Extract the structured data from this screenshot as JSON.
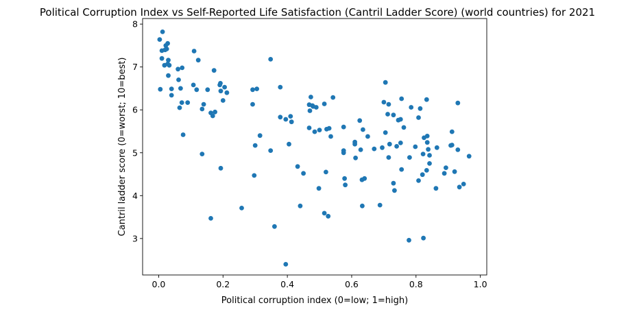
{
  "chart_data": {
    "type": "scatter",
    "title": "Political Corruption Index vs Self-Reported Life Satisfaction (Cantril Ladder Score) (world countries) for 2021",
    "xlabel": "Political corruption index (0=low; 1=high)",
    "ylabel": "Cantril ladder score (0=worst; 10=best)",
    "xlim": [
      -0.05,
      1.02
    ],
    "ylim": [
      2.15,
      8.13
    ],
    "xticks": [
      0.0,
      0.2,
      0.4,
      0.6,
      0.8,
      1.0
    ],
    "xtick_labels": [
      "0.0",
      "0.2",
      "0.4",
      "0.6",
      "0.8",
      "1.0"
    ],
    "yticks": [
      3,
      4,
      5,
      6,
      7,
      8
    ],
    "ytick_labels": [
      "3",
      "4",
      "5",
      "6",
      "7",
      "8"
    ],
    "grid": false,
    "marker_color": "#1f77b4",
    "points": [
      [
        0.003,
        7.64
      ],
      [
        0.012,
        7.82
      ],
      [
        0.022,
        7.5
      ],
      [
        0.028,
        7.55
      ],
      [
        0.01,
        7.38
      ],
      [
        0.02,
        7.4
      ],
      [
        0.025,
        7.42
      ],
      [
        0.01,
        7.2
      ],
      [
        0.018,
        7.04
      ],
      [
        0.03,
        7.16
      ],
      [
        0.033,
        7.04
      ],
      [
        0.028,
        7.07
      ],
      [
        0.03,
        6.8
      ],
      [
        0.06,
        6.95
      ],
      [
        0.073,
        6.98
      ],
      [
        0.062,
        6.7
      ],
      [
        0.005,
        6.48
      ],
      [
        0.04,
        6.49
      ],
      [
        0.068,
        6.5
      ],
      [
        0.04,
        6.34
      ],
      [
        0.072,
        6.17
      ],
      [
        0.065,
        6.05
      ],
      [
        0.09,
        6.17
      ],
      [
        0.076,
        5.42
      ],
      [
        0.11,
        7.37
      ],
      [
        0.123,
        7.16
      ],
      [
        0.108,
        6.58
      ],
      [
        0.118,
        6.47
      ],
      [
        0.152,
        6.47
      ],
      [
        0.172,
        6.92
      ],
      [
        0.14,
        6.13
      ],
      [
        0.135,
        6.02
      ],
      [
        0.162,
        5.93
      ],
      [
        0.168,
        5.86
      ],
      [
        0.175,
        5.95
      ],
      [
        0.135,
        4.97
      ],
      [
        0.193,
        4.64
      ],
      [
        0.162,
        3.47
      ],
      [
        0.192,
        6.62
      ],
      [
        0.193,
        6.44
      ],
      [
        0.205,
        6.53
      ],
      [
        0.212,
        6.4
      ],
      [
        0.2,
        6.22
      ],
      [
        0.19,
        6.58
      ],
      [
        0.258,
        3.71
      ],
      [
        0.292,
        6.47
      ],
      [
        0.292,
        6.13
      ],
      [
        0.305,
        6.49
      ],
      [
        0.3,
        5.17
      ],
      [
        0.315,
        5.4
      ],
      [
        0.297,
        4.47
      ],
      [
        0.348,
        7.18
      ],
      [
        0.348,
        5.05
      ],
      [
        0.36,
        3.28
      ],
      [
        0.378,
        6.53
      ],
      [
        0.378,
        5.83
      ],
      [
        0.395,
        5.78
      ],
      [
        0.41,
        5.85
      ],
      [
        0.413,
        5.72
      ],
      [
        0.405,
        5.2
      ],
      [
        0.432,
        4.68
      ],
      [
        0.44,
        3.76
      ],
      [
        0.45,
        4.52
      ],
      [
        0.395,
        2.4
      ],
      [
        0.468,
        6.12
      ],
      [
        0.473,
        6.3
      ],
      [
        0.48,
        6.08
      ],
      [
        0.47,
        5.98
      ],
      [
        0.478,
        6.1
      ],
      [
        0.49,
        6.06
      ],
      [
        0.515,
        6.14
      ],
      [
        0.468,
        5.58
      ],
      [
        0.485,
        5.49
      ],
      [
        0.5,
        5.53
      ],
      [
        0.522,
        5.55
      ],
      [
        0.53,
        5.57
      ],
      [
        0.535,
        5.38
      ],
      [
        0.542,
        6.29
      ],
      [
        0.498,
        4.17
      ],
      [
        0.52,
        4.55
      ],
      [
        0.515,
        3.59
      ],
      [
        0.527,
        3.52
      ],
      [
        0.575,
        5.6
      ],
      [
        0.575,
        5.05
      ],
      [
        0.575,
        5.0
      ],
      [
        0.578,
        4.4
      ],
      [
        0.58,
        4.25
      ],
      [
        0.61,
        5.25
      ],
      [
        0.61,
        5.2
      ],
      [
        0.612,
        4.88
      ],
      [
        0.625,
        5.75
      ],
      [
        0.635,
        5.54
      ],
      [
        0.628,
        5.07
      ],
      [
        0.632,
        4.37
      ],
      [
        0.64,
        4.4
      ],
      [
        0.65,
        5.38
      ],
      [
        0.633,
        3.76
      ],
      [
        0.67,
        5.09
      ],
      [
        0.688,
        3.78
      ],
      [
        0.695,
        5.12
      ],
      [
        0.705,
        6.64
      ],
      [
        0.7,
        6.18
      ],
      [
        0.715,
        6.13
      ],
      [
        0.712,
        5.9
      ],
      [
        0.705,
        5.47
      ],
      [
        0.718,
        5.2
      ],
      [
        0.73,
        5.88
      ],
      [
        0.745,
        5.76
      ],
      [
        0.752,
        5.78
      ],
      [
        0.74,
        5.15
      ],
      [
        0.752,
        5.23
      ],
      [
        0.762,
        5.59
      ],
      [
        0.755,
        6.26
      ],
      [
        0.715,
        4.89
      ],
      [
        0.73,
        4.29
      ],
      [
        0.733,
        4.12
      ],
      [
        0.755,
        4.61
      ],
      [
        0.78,
        4.89
      ],
      [
        0.778,
        2.96
      ],
      [
        0.785,
        6.06
      ],
      [
        0.808,
        5.82
      ],
      [
        0.813,
        6.03
      ],
      [
        0.833,
        6.24
      ],
      [
        0.798,
        5.14
      ],
      [
        0.825,
        5.35
      ],
      [
        0.835,
        5.39
      ],
      [
        0.835,
        5.24
      ],
      [
        0.822,
        4.97
      ],
      [
        0.838,
        5.08
      ],
      [
        0.842,
        4.94
      ],
      [
        0.808,
        4.35
      ],
      [
        0.82,
        4.49
      ],
      [
        0.833,
        4.59
      ],
      [
        0.842,
        4.75
      ],
      [
        0.823,
        3.01
      ],
      [
        0.865,
        5.12
      ],
      [
        0.862,
        4.17
      ],
      [
        0.893,
        4.65
      ],
      [
        0.888,
        4.52
      ],
      [
        0.908,
        5.17
      ],
      [
        0.912,
        5.49
      ],
      [
        0.912,
        5.18
      ],
      [
        0.92,
        4.56
      ],
      [
        0.93,
        6.16
      ],
      [
        0.93,
        5.07
      ],
      [
        0.935,
        4.2
      ],
      [
        0.948,
        4.27
      ],
      [
        0.965,
        4.92
      ]
    ]
  }
}
